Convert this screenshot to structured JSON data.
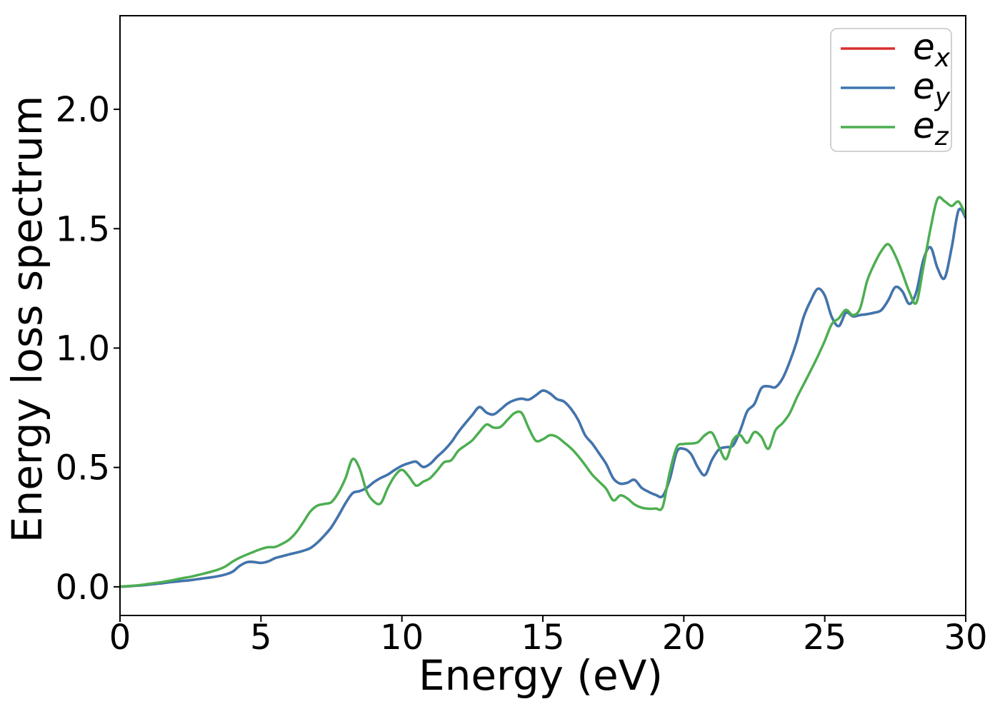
{
  "figure": {
    "background": "#ffffff",
    "text_color": "#000000"
  },
  "chart_data": {
    "type": "line",
    "title": "",
    "xlabel": "Energy (eV)",
    "ylabel": "Energy loss spectrum",
    "xlim": [
      0,
      30
    ],
    "ylim": [
      -0.12,
      2.392
    ],
    "xticks": [
      0,
      5,
      10,
      15,
      20,
      25,
      30
    ],
    "xtick_labels": [
      "0",
      "5",
      "10",
      "15",
      "20",
      "25",
      "30"
    ],
    "yticks": [
      0.0,
      0.5,
      1.0,
      1.5,
      2.0
    ],
    "ytick_labels": [
      "0.0",
      "0.5",
      "1.0",
      "1.5",
      "2.0"
    ],
    "grid": false,
    "x_start": 0,
    "x_step": 0.25,
    "legend": {
      "position": "upper right",
      "entries": [
        {
          "main": "e",
          "sub": "x",
          "color": "#d8302e"
        },
        {
          "main": "e",
          "sub": "y",
          "color": "#3d76b0"
        },
        {
          "main": "e",
          "sub": "z",
          "color": "#4dae51"
        }
      ]
    },
    "series": [
      {
        "name": "e_x",
        "color": "#d8302e",
        "values": [
          0.001,
          0.002,
          0.004,
          0.006,
          0.009,
          0.012,
          0.015,
          0.019,
          0.022,
          0.025,
          0.028,
          0.032,
          0.036,
          0.04,
          0.045,
          0.052,
          0.064,
          0.088,
          0.103,
          0.104,
          0.1,
          0.106,
          0.12,
          0.128,
          0.136,
          0.143,
          0.151,
          0.162,
          0.185,
          0.215,
          0.25,
          0.298,
          0.35,
          0.392,
          0.401,
          0.414,
          0.438,
          0.456,
          0.47,
          0.49,
          0.507,
          0.518,
          0.524,
          0.502,
          0.515,
          0.545,
          0.572,
          0.605,
          0.648,
          0.685,
          0.72,
          0.753,
          0.73,
          0.722,
          0.743,
          0.768,
          0.782,
          0.788,
          0.784,
          0.802,
          0.822,
          0.81,
          0.786,
          0.776,
          0.745,
          0.7,
          0.635,
          0.6,
          0.558,
          0.514,
          0.454,
          0.432,
          0.436,
          0.448,
          0.415,
          0.398,
          0.385,
          0.38,
          0.45,
          0.565,
          0.578,
          0.557,
          0.5,
          0.468,
          0.532,
          0.576,
          0.585,
          0.592,
          0.655,
          0.735,
          0.765,
          0.832,
          0.84,
          0.836,
          0.872,
          0.94,
          1.025,
          1.13,
          1.198,
          1.248,
          1.22,
          1.13,
          1.092,
          1.148,
          1.133,
          1.138,
          1.142,
          1.148,
          1.158,
          1.2,
          1.255,
          1.238,
          1.185,
          1.235,
          1.37,
          1.422,
          1.335,
          1.293,
          1.42,
          1.578,
          1.545
        ]
      },
      {
        "name": "e_y",
        "color": "#3d76b0",
        "values": [
          0.001,
          0.002,
          0.004,
          0.006,
          0.009,
          0.012,
          0.015,
          0.019,
          0.022,
          0.025,
          0.028,
          0.032,
          0.036,
          0.04,
          0.045,
          0.052,
          0.064,
          0.088,
          0.103,
          0.104,
          0.1,
          0.106,
          0.12,
          0.128,
          0.136,
          0.143,
          0.151,
          0.162,
          0.185,
          0.215,
          0.25,
          0.298,
          0.35,
          0.392,
          0.401,
          0.414,
          0.438,
          0.456,
          0.47,
          0.49,
          0.507,
          0.518,
          0.524,
          0.502,
          0.515,
          0.545,
          0.572,
          0.605,
          0.648,
          0.685,
          0.72,
          0.753,
          0.73,
          0.722,
          0.743,
          0.768,
          0.782,
          0.788,
          0.784,
          0.802,
          0.822,
          0.81,
          0.786,
          0.776,
          0.745,
          0.7,
          0.635,
          0.6,
          0.558,
          0.514,
          0.454,
          0.432,
          0.436,
          0.448,
          0.415,
          0.398,
          0.385,
          0.38,
          0.45,
          0.565,
          0.578,
          0.557,
          0.5,
          0.468,
          0.532,
          0.576,
          0.585,
          0.592,
          0.655,
          0.735,
          0.765,
          0.832,
          0.84,
          0.836,
          0.872,
          0.94,
          1.025,
          1.13,
          1.198,
          1.248,
          1.22,
          1.13,
          1.092,
          1.148,
          1.133,
          1.138,
          1.142,
          1.148,
          1.158,
          1.2,
          1.255,
          1.238,
          1.185,
          1.235,
          1.37,
          1.422,
          1.335,
          1.293,
          1.42,
          1.578,
          1.545
        ]
      },
      {
        "name": "e_z",
        "color": "#4dae51",
        "values": [
          0.001,
          0.003,
          0.005,
          0.008,
          0.012,
          0.016,
          0.02,
          0.025,
          0.031,
          0.037,
          0.042,
          0.049,
          0.056,
          0.064,
          0.073,
          0.086,
          0.106,
          0.122,
          0.135,
          0.147,
          0.158,
          0.166,
          0.167,
          0.18,
          0.198,
          0.228,
          0.27,
          0.315,
          0.34,
          0.347,
          0.355,
          0.395,
          0.455,
          0.535,
          0.495,
          0.4,
          0.358,
          0.35,
          0.414,
          0.465,
          0.49,
          0.462,
          0.424,
          0.44,
          0.455,
          0.487,
          0.522,
          0.53,
          0.57,
          0.592,
          0.614,
          0.649,
          0.68,
          0.667,
          0.67,
          0.7,
          0.728,
          0.728,
          0.664,
          0.612,
          0.618,
          0.635,
          0.628,
          0.605,
          0.58,
          0.548,
          0.51,
          0.47,
          0.44,
          0.41,
          0.362,
          0.383,
          0.37,
          0.345,
          0.332,
          0.327,
          0.328,
          0.335,
          0.48,
          0.585,
          0.598,
          0.6,
          0.606,
          0.635,
          0.645,
          0.585,
          0.535,
          0.615,
          0.635,
          0.603,
          0.648,
          0.628,
          0.578,
          0.655,
          0.685,
          0.725,
          0.79,
          0.848,
          0.905,
          0.965,
          1.03,
          1.1,
          1.125,
          1.16,
          1.138,
          1.165,
          1.28,
          1.35,
          1.405,
          1.435,
          1.388,
          1.315,
          1.235,
          1.19,
          1.34,
          1.5,
          1.625,
          1.615,
          1.595,
          1.613,
          1.555
        ]
      }
    ]
  }
}
